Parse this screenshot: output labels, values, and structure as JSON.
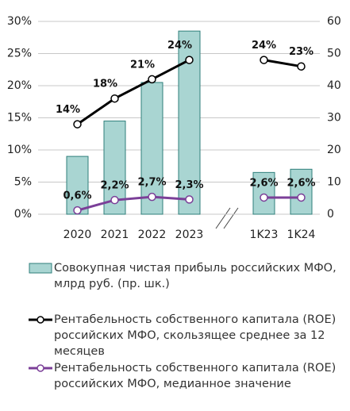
{
  "chart_data": {
    "type": "bar",
    "categories": [
      "2020",
      "2021",
      "2022",
      "2023",
      null,
      "1K23",
      "1K24"
    ],
    "series": [
      {
        "name": "Совокупная чистая прибыль российских МФО, млрд руб. (пр. шк.)",
        "type": "bar",
        "axis": "y2",
        "color": "#a9d5d2",
        "values": [
          18,
          29,
          41,
          57,
          null,
          13,
          14
        ]
      },
      {
        "name": "Рентабельность собственного капитала (ROE) российских МФО, скользящее среднее за 12 месяцев",
        "type": "line",
        "color": "#000000",
        "values": [
          14,
          18,
          21,
          24,
          null,
          24,
          23
        ],
        "value_labels": [
          "14%",
          "18%",
          "21%",
          "24%",
          null,
          "24%",
          "23%"
        ]
      },
      {
        "name": "Рентабельность собственного капитала (ROE) российских МФО, медианное значение",
        "type": "line",
        "color": "#7b3f98",
        "values": [
          0.6,
          2.2,
          2.7,
          2.3,
          null,
          2.6,
          2.6
        ],
        "value_labels": [
          "0,6%",
          "2,2%",
          "2,7%",
          "2,3%",
          null,
          "2,6%",
          "2,6%"
        ]
      }
    ],
    "ylim": [
      0,
      30
    ],
    "yticks": [
      {
        "value": 0,
        "label": "0%"
      },
      {
        "value": 5,
        "label": "5%"
      },
      {
        "value": 10,
        "label": "10%"
      },
      {
        "value": 15,
        "label": "15%"
      },
      {
        "value": 20,
        "label": "20%"
      },
      {
        "value": 25,
        "label": "25%"
      },
      {
        "value": 30,
        "label": "30%"
      }
    ],
    "y2lim": [
      0,
      60
    ],
    "y2ticks": [
      0,
      10,
      20,
      30,
      40,
      50,
      60
    ],
    "grid": true
  }
}
